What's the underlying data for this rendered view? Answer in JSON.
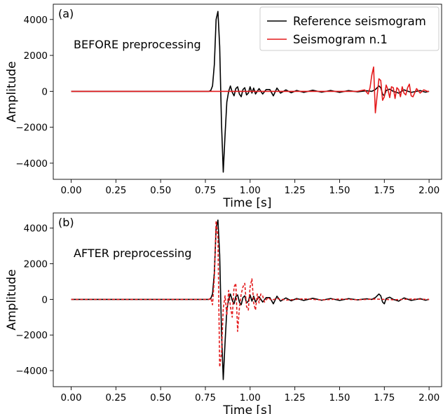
{
  "chart_data": [
    {
      "type": "line",
      "panel_label": "(a)",
      "annotation": "BEFORE preprocessing",
      "xlabel": "Time [s]",
      "ylabel": "Amplitude",
      "xlim": [
        -0.1,
        2.07
      ],
      "ylim": [
        -4900,
        4850
      ],
      "xticks": [
        0.0,
        0.25,
        0.5,
        0.75,
        1.0,
        1.25,
        1.5,
        1.75,
        2.0
      ],
      "xtick_labels": [
        "0.00",
        "0.25",
        "0.50",
        "0.75",
        "1.00",
        "1.25",
        "1.50",
        "1.75",
        "2.00"
      ],
      "yticks": [
        -4000,
        -2000,
        0,
        2000,
        4000
      ],
      "ytick_labels": [
        "−4000",
        "−2000",
        "0",
        "2000",
        "4000"
      ],
      "legend": {
        "placement": "top-right",
        "entries": [
          "Reference seismogram",
          "Seismogram n.1"
        ]
      },
      "series": [
        {
          "name": "Reference seismogram",
          "color": "#000000",
          "style": "solid",
          "x": [
            0.0,
            0.77,
            0.78,
            0.79,
            0.8,
            0.81,
            0.82,
            0.83,
            0.84,
            0.85,
            0.86,
            0.87,
            0.88,
            0.89,
            0.9,
            0.91,
            0.92,
            0.93,
            0.94,
            0.95,
            0.96,
            0.97,
            0.98,
            0.99,
            1.0,
            1.01,
            1.02,
            1.03,
            1.05,
            1.07,
            1.09,
            1.11,
            1.13,
            1.15,
            1.17,
            1.2,
            1.23,
            1.26,
            1.3,
            1.35,
            1.4,
            1.45,
            1.5,
            1.55,
            1.6,
            1.65,
            1.68,
            1.7,
            1.72,
            1.73,
            1.74,
            1.75,
            1.76,
            1.78,
            1.8,
            1.83,
            1.86,
            1.9,
            1.95,
            1.98,
            2.0
          ],
          "y": [
            0,
            0,
            50,
            300,
            1500,
            4000,
            4450,
            2500,
            -1800,
            -4500,
            -2400,
            -600,
            0,
            300,
            -50,
            -250,
            150,
            250,
            -150,
            -300,
            100,
            200,
            -200,
            -100,
            250,
            -100,
            180,
            -150,
            150,
            -150,
            100,
            100,
            -250,
            180,
            -100,
            80,
            -80,
            50,
            -60,
            60,
            -50,
            50,
            -60,
            40,
            -30,
            30,
            0,
            100,
            300,
            200,
            -150,
            -250,
            50,
            120,
            0,
            -100,
            80,
            -60,
            40,
            -50,
            0
          ]
        },
        {
          "name": "Seismogram n.1",
          "color": "#e41a1c",
          "style": "solid",
          "x": [
            0.0,
            1.6,
            1.64,
            1.66,
            1.67,
            1.68,
            1.69,
            1.7,
            1.71,
            1.72,
            1.73,
            1.74,
            1.75,
            1.76,
            1.77,
            1.78,
            1.79,
            1.8,
            1.81,
            1.82,
            1.83,
            1.84,
            1.85,
            1.86,
            1.87,
            1.88,
            1.89,
            1.9,
            1.91,
            1.93,
            1.95,
            1.97,
            1.99,
            2.0
          ],
          "y": [
            0,
            0,
            80,
            -150,
            200,
            900,
            1350,
            -1200,
            -200,
            700,
            600,
            -500,
            -300,
            350,
            100,
            -350,
            250,
            200,
            -400,
            200,
            100,
            -300,
            250,
            -100,
            -200,
            200,
            400,
            -250,
            -300,
            150,
            -100,
            80,
            0,
            0
          ]
        }
      ]
    },
    {
      "type": "line",
      "panel_label": "(b)",
      "annotation": "AFTER preprocessing",
      "xlabel": "Time [s]",
      "ylabel": "Amplitude",
      "xlim": [
        -0.1,
        2.07
      ],
      "ylim": [
        -4900,
        4850
      ],
      "xticks": [
        0.0,
        0.25,
        0.5,
        0.75,
        1.0,
        1.25,
        1.5,
        1.75,
        2.0
      ],
      "xtick_labels": [
        "0.00",
        "0.25",
        "0.50",
        "0.75",
        "1.00",
        "1.25",
        "1.50",
        "1.75",
        "2.00"
      ],
      "yticks": [
        -4000,
        -2000,
        0,
        2000,
        4000
      ],
      "ytick_labels": [
        "−4000",
        "−2000",
        "0",
        "2000",
        "4000"
      ],
      "series": [
        {
          "name": "Reference seismogram",
          "color": "#000000",
          "style": "solid",
          "x": [
            0.0,
            0.77,
            0.78,
            0.79,
            0.8,
            0.81,
            0.82,
            0.83,
            0.84,
            0.85,
            0.86,
            0.87,
            0.88,
            0.89,
            0.9,
            0.91,
            0.92,
            0.93,
            0.94,
            0.95,
            0.96,
            0.97,
            0.98,
            0.99,
            1.0,
            1.01,
            1.02,
            1.03,
            1.05,
            1.07,
            1.09,
            1.11,
            1.13,
            1.15,
            1.17,
            1.2,
            1.23,
            1.26,
            1.3,
            1.35,
            1.4,
            1.45,
            1.5,
            1.55,
            1.6,
            1.65,
            1.68,
            1.7,
            1.72,
            1.73,
            1.74,
            1.75,
            1.76,
            1.78,
            1.8,
            1.83,
            1.86,
            1.9,
            1.95,
            1.98,
            2.0
          ],
          "y": [
            0,
            0,
            50,
            300,
            1500,
            4000,
            4450,
            2500,
            -1800,
            -4500,
            -2400,
            -600,
            0,
            300,
            -50,
            -250,
            150,
            250,
            -150,
            -300,
            100,
            200,
            -200,
            -100,
            250,
            -100,
            180,
            -150,
            150,
            -150,
            100,
            100,
            -250,
            180,
            -100,
            80,
            -80,
            50,
            -60,
            60,
            -50,
            50,
            -60,
            40,
            -30,
            30,
            0,
            100,
            300,
            200,
            -150,
            -250,
            50,
            120,
            0,
            -100,
            80,
            -60,
            40,
            -50,
            0
          ]
        },
        {
          "name": "Seismogram n.1",
          "color": "#e41a1c",
          "style": "dashed",
          "x": [
            0.0,
            0.77,
            0.78,
            0.79,
            0.8,
            0.81,
            0.82,
            0.83,
            0.84,
            0.85,
            0.86,
            0.87,
            0.88,
            0.89,
            0.9,
            0.91,
            0.92,
            0.93,
            0.94,
            0.95,
            0.96,
            0.97,
            0.98,
            0.99,
            1.0,
            1.01,
            1.02,
            1.03,
            1.04,
            1.05,
            1.06,
            1.07,
            1.08,
            1.1,
            1.12,
            1.15,
            1.2,
            1.3,
            1.4,
            1.5,
            1.6,
            1.7,
            1.8,
            1.9,
            2.0
          ],
          "y": [
            0,
            0,
            80,
            -300,
            1200,
            4400,
            3500,
            -3800,
            -3000,
            -500,
            200,
            -900,
            500,
            -400,
            -1000,
            700,
            900,
            -1800,
            -500,
            300,
            700,
            900,
            -400,
            -600,
            700,
            1150,
            -200,
            -600,
            300,
            -200,
            300,
            200,
            -150,
            100,
            -50,
            50,
            -40,
            30,
            -30,
            20,
            -20,
            20,
            -20,
            20,
            0
          ]
        }
      ]
    }
  ]
}
